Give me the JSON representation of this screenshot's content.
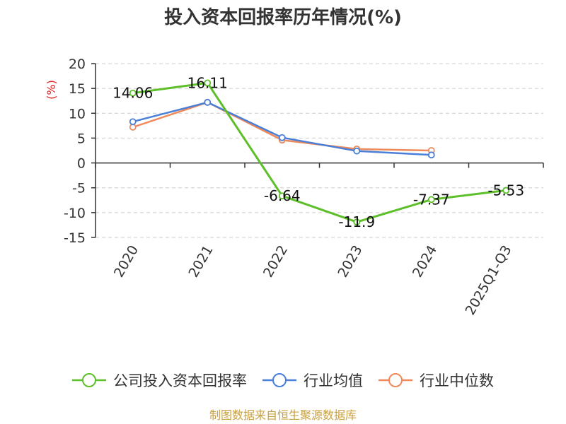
{
  "title": "投入资本回报率历年情况(%)",
  "source": "制图数据来自恒生聚源数据库",
  "chart_data": {
    "type": "line",
    "title": "投入资本回报率历年情况(%)",
    "ylabel": "(%)",
    "xlabel": "",
    "categories": [
      "2020",
      "2021",
      "2022",
      "2023",
      "2024",
      "2025Q1-Q3"
    ],
    "ylim": [
      -15,
      20
    ],
    "yticks": [
      20,
      15,
      10,
      5,
      0,
      -5,
      -10,
      -15
    ],
    "grid": true,
    "legend_position": "bottom",
    "series": [
      {
        "name": "公司投入资本回报率",
        "color": "#5dbf2a",
        "values": [
          14.06,
          16.11,
          -6.64,
          -11.9,
          -7.37,
          -5.53
        ],
        "labels": [
          "14.06",
          "16.11",
          "-6.64",
          "-11.9",
          "-7.37",
          "-5.53"
        ]
      },
      {
        "name": "行业均值",
        "color": "#4a7fd8",
        "values": [
          8.3,
          12.2,
          5.1,
          2.4,
          1.6,
          null
        ]
      },
      {
        "name": "行业中位数",
        "color": "#f0895a",
        "values": [
          7.2,
          12.2,
          4.6,
          2.8,
          2.5,
          null
        ]
      }
    ]
  }
}
